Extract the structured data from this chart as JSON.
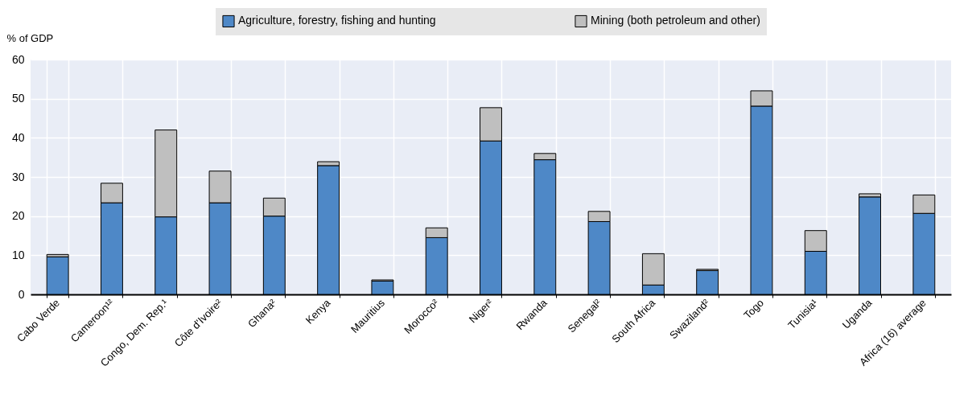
{
  "chart_data": {
    "type": "bar",
    "stacked": true,
    "ylabel": "% of GDP",
    "categories": [
      "Cabo Verde",
      "Cameroon¹²",
      "Congo, Dem. Rep.¹",
      "Côte d’Ivoire²",
      "Ghana²",
      "Kenya",
      "Mauritius",
      "Morocco²",
      "Niger²",
      "Rwanda",
      "Senegal²",
      "South Africa",
      "Swaziland²",
      "Togo",
      "Tunisia¹",
      "Uganda",
      "Africa (16) average"
    ],
    "series": [
      {
        "name": "Agriculture, forestry, fishing and hunting",
        "color": "#4e88c7",
        "values": [
          9.6,
          23.4,
          19.8,
          23.4,
          20.0,
          32.9,
          3.4,
          14.5,
          39.2,
          34.4,
          18.6,
          2.4,
          6.1,
          48.1,
          11.0,
          24.9,
          20.7
        ]
      },
      {
        "name": "Mining (both petroleum and other)",
        "color": "#bfbfbf",
        "values": [
          0.6,
          5.0,
          22.2,
          8.1,
          4.6,
          1.0,
          0.3,
          2.5,
          8.5,
          1.6,
          2.6,
          8.0,
          0.3,
          3.9,
          5.3,
          0.8,
          4.7
        ]
      }
    ],
    "ylim": [
      0,
      60
    ],
    "yticks": [
      0,
      10,
      20,
      30,
      40,
      50,
      60
    ],
    "grid": true,
    "legend": "top"
  }
}
